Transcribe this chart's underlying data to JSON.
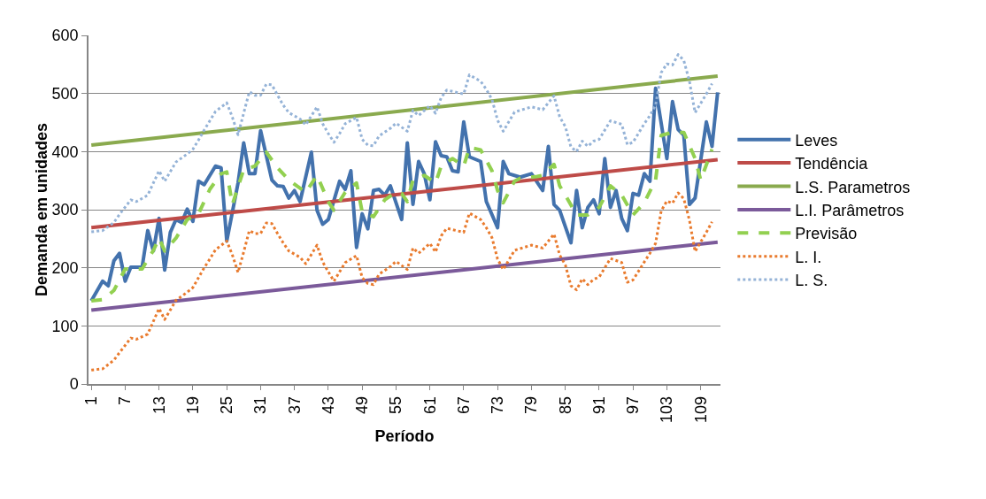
{
  "chart_data": {
    "type": "line",
    "xlabel": "Período",
    "ylabel": "Demanda em unidades",
    "xlim": [
      0.5,
      112.5
    ],
    "xticks": [
      1,
      7,
      13,
      19,
      25,
      31,
      37,
      43,
      49,
      55,
      61,
      67,
      73,
      79,
      85,
      91,
      97,
      103,
      109
    ],
    "ylim": [
      0,
      600
    ],
    "yticks": [
      0,
      100,
      200,
      300,
      400,
      500,
      600
    ],
    "grid": "y",
    "legend": "right",
    "marker": "none",
    "series": [
      {
        "name": "Leves",
        "color": "#4372ad",
        "line_style": "solid",
        "x": [
          1,
          3,
          4,
          5,
          6,
          7,
          8,
          10,
          11,
          12,
          13,
          14,
          15,
          16,
          17,
          18,
          19,
          20,
          21,
          23,
          24,
          25,
          27,
          28,
          29,
          30,
          31,
          33,
          34,
          35,
          36,
          37,
          38,
          40,
          41,
          42,
          43,
          45,
          46,
          47,
          48,
          49,
          50,
          51,
          52,
          53,
          54,
          56,
          57,
          58,
          59,
          60,
          61,
          62,
          63,
          64,
          65,
          66,
          67,
          68,
          70,
          71,
          73,
          74,
          75,
          77,
          79,
          81,
          82,
          83,
          84,
          86,
          87,
          88,
          89,
          90,
          91,
          92,
          93,
          94,
          95,
          96,
          97,
          98,
          99,
          100,
          101,
          103,
          104,
          105,
          106,
          107,
          108,
          110,
          111,
          112
        ],
        "values": [
          143,
          177,
          169,
          212,
          225,
          177,
          201,
          201,
          264,
          229,
          285,
          196,
          261,
          283,
          278,
          301,
          280,
          349,
          343,
          375,
          372,
          246,
          346,
          415,
          362,
          362,
          436,
          351,
          341,
          340,
          320,
          333,
          314,
          399,
          299,
          275,
          283,
          349,
          335,
          367,
          235,
          293,
          267,
          333,
          335,
          325,
          341,
          283,
          415,
          309,
          383,
          362,
          317,
          417,
          393,
          391,
          367,
          365,
          451,
          391,
          383,
          314,
          269,
          383,
          362,
          356,
          362,
          333,
          409,
          309,
          299,
          243,
          333,
          269,
          304,
          317,
          293,
          388,
          304,
          333,
          285,
          264,
          328,
          325,
          362,
          349,
          509,
          388,
          486,
          438,
          428,
          309,
          320,
          451,
          409,
          502
        ]
      },
      {
        "name": "Tendência",
        "color": "#be4b48",
        "line_style": "solid",
        "x": [
          1,
          112
        ],
        "values": [
          269,
          386
        ]
      },
      {
        "name": "L.S. Parametros",
        "color": "#8aaa4e",
        "line_style": "solid",
        "x": [
          1,
          112
        ],
        "values": [
          411,
          530
        ]
      },
      {
        "name": "L.I. Parâmetros",
        "color": "#7b5a9a",
        "line_style": "solid",
        "x": [
          1,
          112
        ],
        "values": [
          127,
          244
        ]
      },
      {
        "name": "Previsão",
        "color": "#92d050",
        "line_style": "dashed",
        "x": [
          1,
          3,
          5,
          7,
          10,
          12,
          13,
          14,
          16,
          18,
          20,
          22,
          24,
          25,
          26,
          28,
          29,
          30,
          32,
          34,
          36,
          39,
          41,
          43,
          44,
          46,
          48,
          49,
          51,
          53,
          55,
          56,
          57,
          58,
          60,
          62,
          63,
          65,
          67,
          68,
          70,
          72,
          73,
          74,
          76,
          77,
          80,
          81,
          83,
          84,
          85,
          87,
          89,
          91,
          93,
          95,
          97,
          99,
          101,
          102,
          104,
          106,
          108,
          109,
          111
        ],
        "values": [
          143,
          145,
          161,
          198,
          198,
          230,
          251,
          229,
          251,
          283,
          293,
          335,
          362,
          365,
          309,
          369,
          372,
          375,
          399,
          372,
          351,
          330,
          359,
          314,
          299,
          330,
          346,
          296,
          288,
          317,
          330,
          328,
          314,
          351,
          359,
          346,
          375,
          388,
          375,
          407,
          403,
          367,
          333,
          312,
          349,
          354,
          357,
          359,
          378,
          341,
          325,
          291,
          291,
          304,
          341,
          325,
          291,
          312,
          351,
          428,
          433,
          433,
          388,
          351,
          404
        ]
      },
      {
        "name": "L. I.",
        "color": "#e97b2e",
        "line_style": "dotted",
        "x": [
          1,
          3,
          5,
          6,
          8,
          9,
          11,
          13,
          14,
          16,
          18,
          19,
          20,
          21,
          22,
          23,
          25,
          26,
          27,
          28,
          29,
          30,
          31,
          32,
          33,
          34,
          35,
          36,
          38,
          39,
          41,
          42,
          43,
          44,
          45,
          46,
          48,
          49,
          50,
          51,
          52,
          54,
          55,
          57,
          58,
          59,
          61,
          62,
          63,
          64,
          67,
          68,
          70,
          71,
          72,
          73,
          74,
          76,
          78,
          79,
          81,
          83,
          84,
          85,
          86,
          87,
          88,
          89,
          90,
          91,
          93,
          95,
          96,
          97,
          99,
          100,
          101,
          102,
          103,
          104,
          105,
          106,
          107,
          108,
          110,
          111
        ],
        "values": [
          24,
          26,
          41,
          54,
          79,
          77,
          86,
          130,
          111,
          144,
          158,
          166,
          183,
          200,
          215,
          231,
          246,
          222,
          192,
          227,
          264,
          259,
          259,
          277,
          276,
          259,
          243,
          229,
          218,
          207,
          239,
          210,
          193,
          177,
          193,
          209,
          221,
          183,
          173,
          171,
          189,
          202,
          211,
          197,
          234,
          225,
          242,
          227,
          255,
          268,
          261,
          294,
          283,
          269,
          252,
          215,
          197,
          230,
          236,
          239,
          234,
          258,
          222,
          205,
          169,
          162,
          181,
          171,
          180,
          184,
          216,
          209,
          175,
          179,
          210,
          225,
          242,
          298,
          315,
          311,
          329,
          319,
          282,
          228,
          261,
          279
        ]
      },
      {
        "name": "L. S.",
        "color": "#95b3d7",
        "line_style": "dotted",
        "x": [
          1,
          3,
          5,
          6,
          8,
          9,
          11,
          13,
          14,
          16,
          18,
          19,
          20,
          21,
          22,
          23,
          25,
          26,
          27,
          28,
          29,
          30,
          31,
          32,
          33,
          34,
          35,
          36,
          38,
          39,
          41,
          42,
          43,
          44,
          45,
          46,
          48,
          49,
          50,
          51,
          52,
          54,
          55,
          57,
          58,
          59,
          61,
          62,
          63,
          64,
          67,
          68,
          70,
          71,
          72,
          73,
          74,
          76,
          78,
          79,
          81,
          83,
          84,
          85,
          86,
          87,
          88,
          89,
          90,
          91,
          93,
          95,
          96,
          97,
          99,
          100,
          101,
          102,
          103,
          104,
          105,
          106,
          107,
          108,
          110,
          111
        ],
        "values": [
          262,
          264,
          278,
          292,
          317,
          314,
          325,
          367,
          349,
          382,
          396,
          404,
          420,
          437,
          453,
          469,
          484,
          459,
          429,
          466,
          503,
          497,
          497,
          516,
          515,
          497,
          480,
          467,
          456,
          446,
          477,
          448,
          431,
          416,
          431,
          448,
          459,
          421,
          411,
          410,
          427,
          440,
          449,
          435,
          471,
          462,
          479,
          466,
          493,
          506,
          499,
          532,
          521,
          507,
          490,
          454,
          435,
          468,
          474,
          477,
          472,
          496,
          460,
          443,
          408,
          400,
          418,
          409,
          418,
          421,
          453,
          447,
          412,
          416,
          448,
          462,
          480,
          536,
          551,
          549,
          567,
          557,
          521,
          467,
          499,
          517
        ]
      }
    ]
  }
}
